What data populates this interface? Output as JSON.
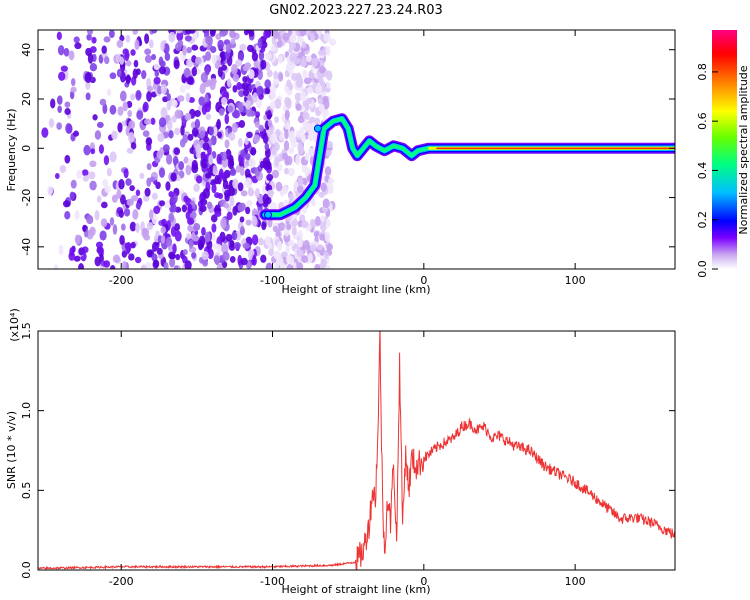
{
  "title": "GN02.2023.227.23.24.R03",
  "chart_data": [
    {
      "type": "heatmap",
      "xlabel": "Height of straight line (km)",
      "ylabel": "Frequency (Hz)",
      "xlim": [
        -255,
        166
      ],
      "ylim": [
        -49,
        48
      ],
      "x_ticks": [
        "-200",
        "-100",
        "0",
        "100"
      ],
      "x_tick_values": [
        -200,
        -100,
        0,
        100
      ],
      "y_ticks": [
        "-40",
        "-20",
        "0",
        "20",
        "40"
      ],
      "y_tick_values": [
        -40,
        -20,
        0,
        20,
        40
      ],
      "noise_region_x": [
        -255,
        -62
      ],
      "ridge": [
        {
          "x": -105,
          "y": -27
        },
        {
          "x": -95,
          "y": -27
        },
        {
          "x": -85,
          "y": -24
        },
        {
          "x": -78,
          "y": -20
        },
        {
          "x": -72,
          "y": -15
        },
        {
          "x": -66,
          "y": 8
        },
        {
          "x": -60,
          "y": 11
        },
        {
          "x": -54,
          "y": 12
        },
        {
          "x": -50,
          "y": 8
        },
        {
          "x": -47,
          "y": 0
        },
        {
          "x": -44,
          "y": -3
        },
        {
          "x": -40,
          "y": 0
        },
        {
          "x": -36,
          "y": 3
        },
        {
          "x": -32,
          "y": 1
        },
        {
          "x": -26,
          "y": -1
        },
        {
          "x": -20,
          "y": 1
        },
        {
          "x": -14,
          "y": 0
        },
        {
          "x": -8,
          "y": -3
        },
        {
          "x": -4,
          "y": -1
        },
        {
          "x": 3,
          "y": 0
        },
        {
          "x": 166,
          "y": 0
        }
      ],
      "colorbar": {
        "label": "Normalized spectral amplitude",
        "ticks": [
          "0.0",
          "0.2",
          "0.4",
          "0.6",
          "0.8"
        ],
        "tick_values": [
          0,
          0.2,
          0.4,
          0.6,
          0.8
        ],
        "range": [
          0,
          0.97
        ],
        "colors": [
          "#ffffff",
          "#c9a8f0",
          "#7b00ff",
          "#0000ff",
          "#00bfff",
          "#00ff80",
          "#66ff00",
          "#ffff00",
          "#ff8000",
          "#ff0000",
          "#ff0080"
        ]
      }
    },
    {
      "type": "line",
      "xlabel": "Height of straight line (km)",
      "ylabel": "SNR (10 * v/v)",
      "exponent_label": "(x10⁴)",
      "xlim": [
        -255,
        166
      ],
      "ylim": [
        0,
        1.5
      ],
      "x_ticks": [
        "-200",
        "-100",
        "0",
        "100"
      ],
      "x_tick_values": [
        -200,
        -100,
        0,
        100
      ],
      "y_ticks": [
        "0.0",
        "0.5",
        "1.0",
        "1.5"
      ],
      "y_tick_values": [
        0,
        0.5,
        1.0,
        1.5
      ],
      "color": "#ee3333",
      "series": [
        {
          "x": [
            -255,
            -200,
            -150,
            -100,
            -60,
            -45,
            -40,
            -36,
            -34,
            -32,
            -30,
            -29,
            -28,
            -27,
            -26,
            -24,
            -22,
            -20,
            -18,
            -16,
            -14,
            -12,
            -10,
            -8,
            -5,
            0,
            10,
            20,
            25,
            30,
            35,
            40,
            45,
            50,
            60,
            70,
            80,
            90,
            100,
            110,
            120,
            130,
            140,
            150,
            160,
            166
          ],
          "y": [
            0.01,
            0.02,
            0.02,
            0.02,
            0.03,
            0.05,
            0.12,
            0.3,
            0.5,
            0.45,
            0.95,
            1.5,
            0.8,
            0.35,
            0.12,
            0.45,
            0.3,
            0.7,
            0.15,
            1.3,
            0.3,
            0.75,
            0.5,
            0.7,
            0.65,
            0.7,
            0.78,
            0.83,
            0.9,
            0.92,
            0.88,
            0.9,
            0.83,
            0.84,
            0.78,
            0.75,
            0.65,
            0.6,
            0.55,
            0.48,
            0.4,
            0.32,
            0.33,
            0.3,
            0.25,
            0.22
          ]
        }
      ]
    }
  ]
}
